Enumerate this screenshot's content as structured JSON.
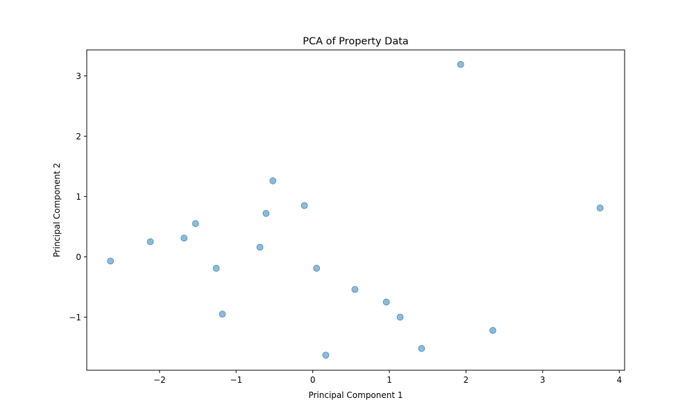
{
  "chart_data": {
    "type": "scatter",
    "title": "PCA of Property Data",
    "xlabel": "Principal Component 1",
    "ylabel": "Principal Component 2",
    "xlim": [
      -2.95,
      4.07
    ],
    "ylim": [
      -1.88,
      3.43
    ],
    "xticks": [
      -2,
      -1,
      0,
      1,
      2,
      3,
      4
    ],
    "xtick_labels": [
      "−2",
      "−1",
      "0",
      "1",
      "2",
      "3",
      "4"
    ],
    "yticks": [
      -1,
      0,
      1,
      2,
      3
    ],
    "ytick_labels": [
      "−1",
      "0",
      "1",
      "2",
      "3"
    ],
    "grid": false,
    "point_color": "#1f77b4",
    "point_alpha": 0.5,
    "series": [
      {
        "points": [
          {
            "x": -2.64,
            "y": -0.07
          },
          {
            "x": -2.12,
            "y": 0.25
          },
          {
            "x": -1.68,
            "y": 0.31
          },
          {
            "x": -1.53,
            "y": 0.55
          },
          {
            "x": -1.26,
            "y": -0.19
          },
          {
            "x": -1.18,
            "y": -0.95
          },
          {
            "x": -0.69,
            "y": 0.16
          },
          {
            "x": -0.61,
            "y": 0.72
          },
          {
            "x": -0.52,
            "y": 1.26
          },
          {
            "x": -0.11,
            "y": 0.85
          },
          {
            "x": 0.05,
            "y": -0.19
          },
          {
            "x": 0.17,
            "y": -1.63
          },
          {
            "x": 0.55,
            "y": -0.54
          },
          {
            "x": 0.96,
            "y": -0.75
          },
          {
            "x": 1.14,
            "y": -1.0
          },
          {
            "x": 1.42,
            "y": -1.52
          },
          {
            "x": 1.93,
            "y": 3.19
          },
          {
            "x": 2.35,
            "y": -1.22
          },
          {
            "x": 3.75,
            "y": 0.81
          }
        ]
      }
    ]
  }
}
